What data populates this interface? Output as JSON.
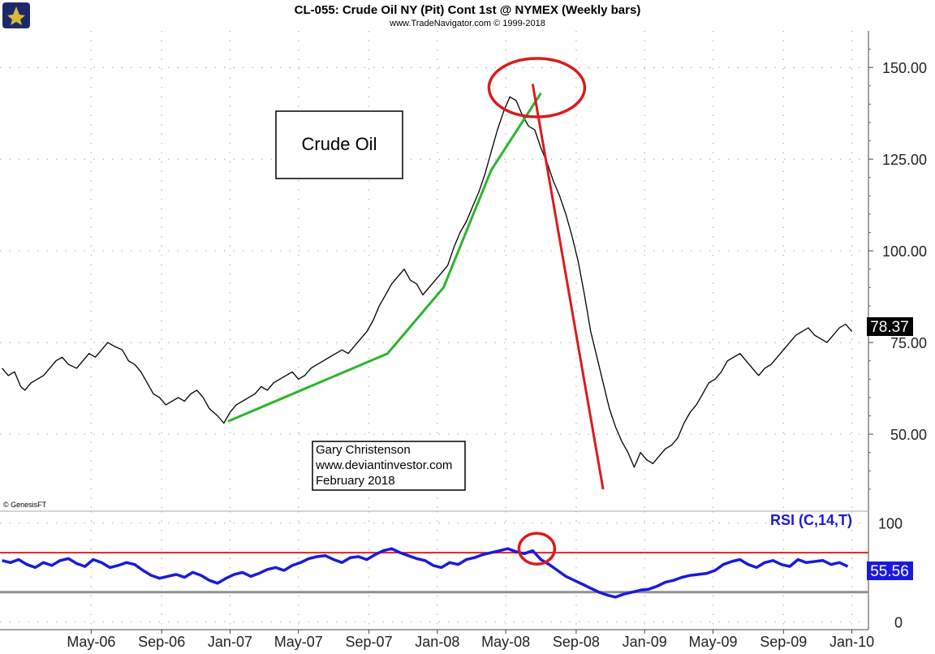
{
  "chart_data": [
    {
      "type": "line",
      "title": "CL-055:  Crude Oil NY (Pit) Cont 1st @ NYMEX  (Weekly bars)",
      "subtitle": "www.TradeNavigator.com © 1999-2018",
      "copyright": "© GenesisFT",
      "y_ticks": [
        "150.00",
        "125.00",
        "100.00",
        "75.00",
        "50.00"
      ],
      "y_tick_values": [
        150,
        125,
        100,
        75,
        50
      ],
      "ylim": [
        29,
        160
      ],
      "x_ticks": [
        "May-06",
        "Sep-06",
        "Jan-07",
        "May-07",
        "Sep-07",
        "Jan-08",
        "May-08",
        "Sep-08",
        "Jan-09",
        "May-09",
        "Sep-09",
        "Jan-10"
      ],
      "x_tick_values": [
        2006.33,
        2006.67,
        2007.0,
        2007.33,
        2007.67,
        2008.0,
        2008.33,
        2008.67,
        2009.0,
        2009.33,
        2009.67,
        2010.0
      ],
      "xlim": [
        2005.89,
        2010.08
      ],
      "last_value": "78.37",
      "grid": "dotted",
      "series": [
        {
          "x": [
            2005.9,
            2005.93,
            2005.96,
            2005.99,
            2006.01,
            2006.04,
            2006.07,
            2006.1,
            2006.13,
            2006.16,
            2006.19,
            2006.22,
            2006.26,
            2006.29,
            2006.32,
            2006.35,
            2006.38,
            2006.41,
            2006.44,
            2006.48,
            2006.51,
            2006.54,
            2006.57,
            2006.6,
            2006.63,
            2006.66,
            2006.69,
            2006.72,
            2006.75,
            2006.78,
            2006.81,
            2006.84,
            2006.87,
            2006.9,
            2006.94,
            2006.97,
            2007.0,
            2007.03,
            2007.06,
            2007.09,
            2007.12,
            2007.15,
            2007.18,
            2007.21,
            2007.24,
            2007.27,
            2007.3,
            2007.33,
            2007.36,
            2007.39,
            2007.42,
            2007.45,
            2007.48,
            2007.51,
            2007.54,
            2007.57,
            2007.6,
            2007.63,
            2007.66,
            2007.69,
            2007.72,
            2007.75,
            2007.78,
            2007.81,
            2007.84,
            2007.87,
            2007.9,
            2007.93,
            2007.96,
            2007.99,
            2008.02,
            2008.05,
            2008.08,
            2008.11,
            2008.14,
            2008.17,
            2008.2,
            2008.23,
            2008.26,
            2008.29,
            2008.32,
            2008.35,
            2008.38,
            2008.41,
            2008.44,
            2008.47,
            2008.5,
            2008.53,
            2008.56,
            2008.59,
            2008.62,
            2008.65,
            2008.68,
            2008.71,
            2008.74,
            2008.77,
            2008.8,
            2008.83,
            2008.86,
            2008.89,
            2008.92,
            2008.95,
            2008.98,
            2009.01,
            2009.04,
            2009.07,
            2009.1,
            2009.13,
            2009.16,
            2009.19,
            2009.22,
            2009.25,
            2009.28,
            2009.31,
            2009.34,
            2009.37,
            2009.4,
            2009.43,
            2009.46,
            2009.49,
            2009.52,
            2009.55,
            2009.58,
            2009.61,
            2009.64,
            2009.67,
            2009.7,
            2009.73,
            2009.76,
            2009.79,
            2009.82,
            2009.85,
            2009.88,
            2009.91,
            2009.94,
            2009.97,
            2010.0
          ],
          "values": [
            68,
            66,
            67,
            63,
            62,
            64,
            65,
            66,
            68,
            70,
            71,
            69,
            68,
            70,
            72,
            71,
            73,
            75,
            74,
            73,
            70,
            69,
            67,
            64,
            61,
            60,
            58,
            59,
            60,
            59,
            61,
            62,
            60,
            57,
            55,
            53,
            56,
            58,
            59,
            60,
            61,
            63,
            62,
            64,
            65,
            66,
            67,
            65,
            66,
            68,
            69,
            70,
            71,
            72,
            73,
            72,
            74,
            76,
            78,
            81,
            85,
            88,
            91,
            93,
            95,
            92,
            91,
            88,
            90,
            92,
            94,
            96,
            101,
            105,
            108,
            112,
            116,
            121,
            127,
            133,
            138,
            142,
            141,
            137,
            134,
            133,
            128,
            124,
            119,
            115,
            110,
            104,
            97,
            88,
            78,
            71,
            64,
            57,
            52,
            48,
            45,
            41,
            45,
            43,
            42,
            44,
            46,
            47,
            49,
            53,
            56,
            58,
            61,
            64,
            65,
            67,
            70,
            71,
            72,
            70,
            68,
            66,
            68,
            69,
            71,
            73,
            75,
            77,
            78,
            79,
            77,
            76,
            75,
            77,
            79,
            80,
            78
          ]
        }
      ],
      "annotation_box_text": "Crude Oil",
      "credit_lines": [
        "Gary Christenson",
        "www.deviantinvestor.com",
        "February 2018"
      ],
      "trendlines": {
        "green": {
          "color": "#2bb52b",
          "points": [
            [
              2006.99,
              53.5
            ],
            [
              2007.76,
              72
            ],
            [
              2008.03,
              90
            ],
            [
              2008.26,
              122
            ],
            [
              2008.5,
              143
            ]
          ]
        },
        "red": {
          "color": "#d91b1b",
          "points": [
            [
              2008.46,
              145.5
            ],
            [
              2008.8,
              35
            ]
          ]
        }
      },
      "highlight_circle": {
        "x": 2008.48,
        "y": 144.5,
        "color": "#d91b1b"
      }
    },
    {
      "type": "line",
      "label": "RSI (C,14,T)",
      "y_ticks": [
        "100",
        "0"
      ],
      "y_tick_values": [
        100,
        0
      ],
      "ylim": [
        -8,
        112
      ],
      "last_value": "55.56",
      "overbought_line": {
        "value": 70,
        "color": "#e02020"
      },
      "oversold_line": {
        "value": 30,
        "color": "#909090"
      },
      "series": [
        {
          "color": "#1a1adc",
          "x": [
            2005.9,
            2005.94,
            2005.98,
            2006.02,
            2006.06,
            2006.1,
            2006.14,
            2006.18,
            2006.22,
            2006.26,
            2006.3,
            2006.34,
            2006.38,
            2006.42,
            2006.46,
            2006.5,
            2006.54,
            2006.58,
            2006.62,
            2006.66,
            2006.7,
            2006.74,
            2006.78,
            2006.82,
            2006.86,
            2006.9,
            2006.94,
            2006.98,
            2007.02,
            2007.06,
            2007.1,
            2007.14,
            2007.18,
            2007.22,
            2007.26,
            2007.3,
            2007.34,
            2007.38,
            2007.42,
            2007.46,
            2007.5,
            2007.54,
            2007.58,
            2007.62,
            2007.66,
            2007.7,
            2007.74,
            2007.78,
            2007.82,
            2007.86,
            2007.9,
            2007.94,
            2007.98,
            2008.02,
            2008.06,
            2008.1,
            2008.14,
            2008.18,
            2008.22,
            2008.26,
            2008.3,
            2008.34,
            2008.38,
            2008.42,
            2008.46,
            2008.5,
            2008.54,
            2008.58,
            2008.62,
            2008.66,
            2008.7,
            2008.74,
            2008.78,
            2008.82,
            2008.86,
            2008.9,
            2008.94,
            2008.98,
            2009.02,
            2009.06,
            2009.1,
            2009.14,
            2009.18,
            2009.22,
            2009.26,
            2009.3,
            2009.34,
            2009.38,
            2009.42,
            2009.46,
            2009.5,
            2009.54,
            2009.58,
            2009.62,
            2009.66,
            2009.7,
            2009.74,
            2009.78,
            2009.82,
            2009.86,
            2009.9,
            2009.94,
            2009.98
          ],
          "values": [
            62,
            60,
            63,
            58,
            55,
            60,
            57,
            62,
            64,
            59,
            56,
            63,
            60,
            55,
            57,
            60,
            58,
            52,
            47,
            44,
            46,
            48,
            45,
            50,
            47,
            42,
            39,
            44,
            48,
            50,
            46,
            49,
            53,
            55,
            52,
            57,
            60,
            64,
            66,
            67,
            63,
            60,
            65,
            66,
            63,
            68,
            72,
            74,
            70,
            67,
            64,
            62,
            57,
            55,
            60,
            58,
            63,
            65,
            68,
            70,
            72,
            74,
            71,
            69,
            72,
            63,
            58,
            52,
            46,
            42,
            38,
            34,
            30,
            27,
            25,
            28,
            30,
            32,
            33,
            36,
            40,
            42,
            45,
            47,
            48,
            49,
            52,
            58,
            61,
            63,
            58,
            55,
            60,
            62,
            58,
            56,
            63,
            60,
            61,
            62,
            58,
            60,
            56
          ]
        }
      ],
      "highlight_circle": {
        "x": 2008.48,
        "y": 74,
        "color": "#d91b1b"
      }
    }
  ]
}
